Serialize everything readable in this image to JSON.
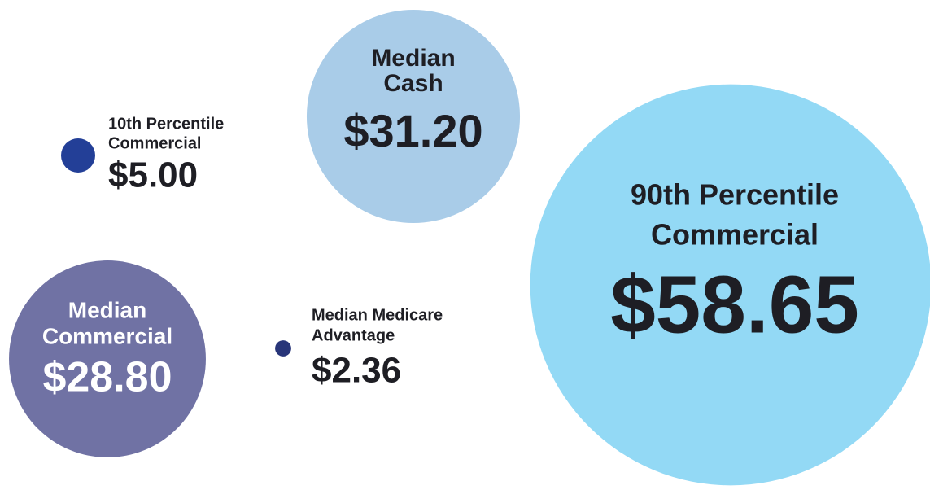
{
  "chart_data": {
    "type": "bubble",
    "categories": [
      [
        "10th Percentile",
        "Commercial"
      ],
      [
        "Median",
        "Cash"
      ],
      [
        "Median",
        "Commercial"
      ],
      [
        "Median Medicare",
        "Advantage"
      ],
      [
        "90th Percentile",
        "Commercial"
      ]
    ],
    "values": [
      5.0,
      31.2,
      28.8,
      2.36,
      58.65
    ],
    "value_labels": [
      "$5.00",
      "$31.20",
      "$28.80",
      "$2.36",
      "$58.65"
    ],
    "colors": [
      "#233f97",
      "#a9cce8",
      "#7072a4",
      "#283579",
      "#93d9f5"
    ]
  }
}
